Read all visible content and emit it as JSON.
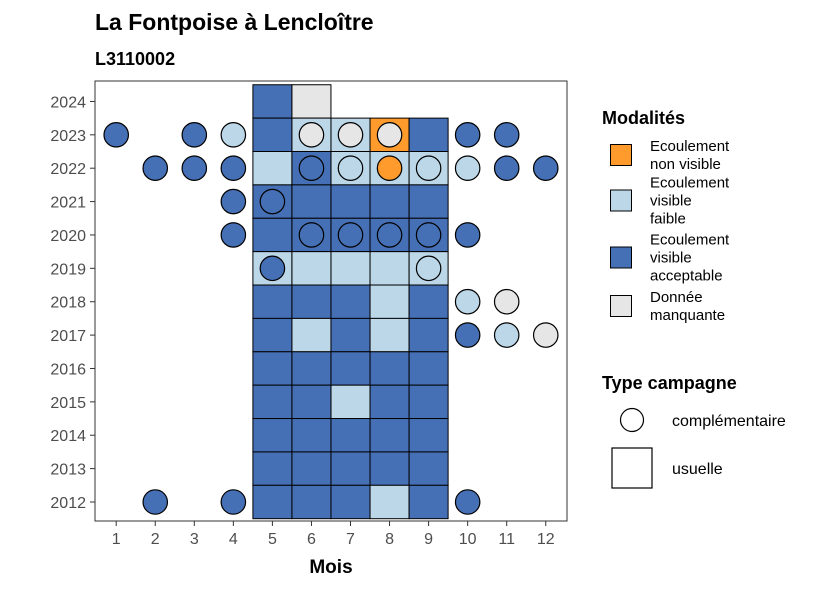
{
  "chart_data": {
    "type": "heatmap",
    "title": "La Fontpoise à Lencloître",
    "subtitle": "L3110002",
    "xlabel": "Mois",
    "x_ticks": [
      1,
      2,
      3,
      4,
      5,
      6,
      7,
      8,
      9,
      10,
      11,
      12
    ],
    "y_ticks": [
      2012,
      2013,
      2014,
      2015,
      2016,
      2017,
      2018,
      2019,
      2020,
      2021,
      2022,
      2023,
      2024
    ],
    "colors": {
      "ecoulement_non_visible": "#fe9b2c",
      "ecoulement_visible_faible": "#bcd7e8",
      "ecoulement_visible_acceptable": "#4670b5",
      "donnee_manquante": "#e6e6e6"
    },
    "legend_modalites": {
      "title": "Modalités",
      "items": [
        {
          "key": "ecoulement_non_visible",
          "lines": [
            "Ecoulement",
            "non visible"
          ]
        },
        {
          "key": "ecoulement_visible_faible",
          "lines": [
            "Ecoulement",
            "visible",
            "faible"
          ]
        },
        {
          "key": "ecoulement_visible_acceptable",
          "lines": [
            "Ecoulement",
            "visible",
            "acceptable"
          ]
        },
        {
          "key": "donnee_manquante",
          "lines": [
            "Donnée",
            "manquante"
          ]
        }
      ]
    },
    "legend_campagne": {
      "title": "Type campagne",
      "items": [
        {
          "shape": "circle",
          "label": "complémentaire"
        },
        {
          "shape": "square",
          "label": "usuelle"
        }
      ]
    },
    "usuelle": [
      {
        "year": 2024,
        "month": 5,
        "value": "ecoulement_visible_acceptable"
      },
      {
        "year": 2024,
        "month": 6,
        "value": "donnee_manquante"
      },
      {
        "year": 2023,
        "month": 5,
        "value": "ecoulement_visible_acceptable"
      },
      {
        "year": 2023,
        "month": 6,
        "value": "ecoulement_visible_faible"
      },
      {
        "year": 2023,
        "month": 7,
        "value": "ecoulement_visible_faible"
      },
      {
        "year": 2023,
        "month": 8,
        "value": "ecoulement_non_visible"
      },
      {
        "year": 2023,
        "month": 9,
        "value": "ecoulement_visible_acceptable"
      },
      {
        "year": 2022,
        "month": 5,
        "value": "ecoulement_visible_faible"
      },
      {
        "year": 2022,
        "month": 6,
        "value": "ecoulement_visible_acceptable"
      },
      {
        "year": 2022,
        "month": 7,
        "value": "ecoulement_visible_faible"
      },
      {
        "year": 2022,
        "month": 8,
        "value": "ecoulement_visible_faible"
      },
      {
        "year": 2022,
        "month": 9,
        "value": "ecoulement_visible_faible"
      },
      {
        "year": 2021,
        "month": 5,
        "value": "ecoulement_visible_acceptable"
      },
      {
        "year": 2021,
        "month": 6,
        "value": "ecoulement_visible_acceptable"
      },
      {
        "year": 2021,
        "month": 7,
        "value": "ecoulement_visible_acceptable"
      },
      {
        "year": 2021,
        "month": 8,
        "value": "ecoulement_visible_acceptable"
      },
      {
        "year": 2021,
        "month": 9,
        "value": "ecoulement_visible_acceptable"
      },
      {
        "year": 2020,
        "month": 5,
        "value": "ecoulement_visible_acceptable"
      },
      {
        "year": 2020,
        "month": 6,
        "value": "ecoulement_visible_acceptable"
      },
      {
        "year": 2020,
        "month": 7,
        "value": "ecoulement_visible_acceptable"
      },
      {
        "year": 2020,
        "month": 8,
        "value": "ecoulement_visible_acceptable"
      },
      {
        "year": 2020,
        "month": 9,
        "value": "ecoulement_visible_acceptable"
      },
      {
        "year": 2019,
        "month": 5,
        "value": "ecoulement_visible_faible"
      },
      {
        "year": 2019,
        "month": 6,
        "value": "ecoulement_visible_faible"
      },
      {
        "year": 2019,
        "month": 7,
        "value": "ecoulement_visible_faible"
      },
      {
        "year": 2019,
        "month": 8,
        "value": "ecoulement_visible_faible"
      },
      {
        "year": 2019,
        "month": 9,
        "value": "ecoulement_visible_faible"
      },
      {
        "year": 2018,
        "month": 5,
        "value": "ecoulement_visible_acceptable"
      },
      {
        "year": 2018,
        "month": 6,
        "value": "ecoulement_visible_acceptable"
      },
      {
        "year": 2018,
        "month": 7,
        "value": "ecoulement_visible_acceptable"
      },
      {
        "year": 2018,
        "month": 8,
        "value": "ecoulement_visible_faible"
      },
      {
        "year": 2018,
        "month": 9,
        "value": "ecoulement_visible_acceptable"
      },
      {
        "year": 2017,
        "month": 5,
        "value": "ecoulement_visible_acceptable"
      },
      {
        "year": 2017,
        "month": 6,
        "value": "ecoulement_visible_faible"
      },
      {
        "year": 2017,
        "month": 7,
        "value": "ecoulement_visible_acceptable"
      },
      {
        "year": 2017,
        "month": 8,
        "value": "ecoulement_visible_faible"
      },
      {
        "year": 2017,
        "month": 9,
        "value": "ecoulement_visible_acceptable"
      },
      {
        "year": 2016,
        "month": 5,
        "value": "ecoulement_visible_acceptable"
      },
      {
        "year": 2016,
        "month": 6,
        "value": "ecoulement_visible_acceptable"
      },
      {
        "year": 2016,
        "month": 7,
        "value": "ecoulement_visible_acceptable"
      },
      {
        "year": 2016,
        "month": 8,
        "value": "ecoulement_visible_acceptable"
      },
      {
        "year": 2016,
        "month": 9,
        "value": "ecoulement_visible_acceptable"
      },
      {
        "year": 2015,
        "month": 5,
        "value": "ecoulement_visible_acceptable"
      },
      {
        "year": 2015,
        "month": 6,
        "value": "ecoulement_visible_acceptable"
      },
      {
        "year": 2015,
        "month": 7,
        "value": "ecoulement_visible_faible"
      },
      {
        "year": 2015,
        "month": 8,
        "value": "ecoulement_visible_acceptable"
      },
      {
        "year": 2015,
        "month": 9,
        "value": "ecoulement_visible_acceptable"
      },
      {
        "year": 2014,
        "month": 5,
        "value": "ecoulement_visible_acceptable"
      },
      {
        "year": 2014,
        "month": 6,
        "value": "ecoulement_visible_acceptable"
      },
      {
        "year": 2014,
        "month": 7,
        "value": "ecoulement_visible_acceptable"
      },
      {
        "year": 2014,
        "month": 8,
        "value": "ecoulement_visible_acceptable"
      },
      {
        "year": 2014,
        "month": 9,
        "value": "ecoulement_visible_acceptable"
      },
      {
        "year": 2013,
        "month": 5,
        "value": "ecoulement_visible_acceptable"
      },
      {
        "year": 2013,
        "month": 6,
        "value": "ecoulement_visible_acceptable"
      },
      {
        "year": 2013,
        "month": 7,
        "value": "ecoulement_visible_acceptable"
      },
      {
        "year": 2013,
        "month": 8,
        "value": "ecoulement_visible_acceptable"
      },
      {
        "year": 2013,
        "month": 9,
        "value": "ecoulement_visible_acceptable"
      },
      {
        "year": 2012,
        "month": 5,
        "value": "ecoulement_visible_acceptable"
      },
      {
        "year": 2012,
        "month": 6,
        "value": "ecoulement_visible_acceptable"
      },
      {
        "year": 2012,
        "month": 7,
        "value": "ecoulement_visible_acceptable"
      },
      {
        "year": 2012,
        "month": 8,
        "value": "ecoulement_visible_faible"
      },
      {
        "year": 2012,
        "month": 9,
        "value": "ecoulement_visible_acceptable"
      }
    ],
    "complementaire": [
      {
        "year": 2023,
        "month": 1,
        "value": "ecoulement_visible_acceptable"
      },
      {
        "year": 2023,
        "month": 3,
        "value": "ecoulement_visible_acceptable"
      },
      {
        "year": 2023,
        "month": 4,
        "value": "ecoulement_visible_faible"
      },
      {
        "year": 2023,
        "month": 6,
        "value": "donnee_manquante"
      },
      {
        "year": 2023,
        "month": 7,
        "value": "donnee_manquante"
      },
      {
        "year": 2023,
        "month": 8,
        "value": "donnee_manquante"
      },
      {
        "year": 2023,
        "month": 10,
        "value": "ecoulement_visible_acceptable"
      },
      {
        "year": 2023,
        "month": 11,
        "value": "ecoulement_visible_acceptable"
      },
      {
        "year": 2022,
        "month": 2,
        "value": "ecoulement_visible_acceptable"
      },
      {
        "year": 2022,
        "month": 3,
        "value": "ecoulement_visible_acceptable"
      },
      {
        "year": 2022,
        "month": 4,
        "value": "ecoulement_visible_acceptable"
      },
      {
        "year": 2022,
        "month": 6,
        "value": "ecoulement_visible_acceptable"
      },
      {
        "year": 2022,
        "month": 7,
        "value": "ecoulement_visible_faible"
      },
      {
        "year": 2022,
        "month": 8,
        "value": "ecoulement_non_visible"
      },
      {
        "year": 2022,
        "month": 9,
        "value": "ecoulement_visible_faible"
      },
      {
        "year": 2022,
        "month": 10,
        "value": "ecoulement_visible_faible"
      },
      {
        "year": 2022,
        "month": 11,
        "value": "ecoulement_visible_acceptable"
      },
      {
        "year": 2022,
        "month": 12,
        "value": "ecoulement_visible_acceptable"
      },
      {
        "year": 2021,
        "month": 4,
        "value": "ecoulement_visible_acceptable"
      },
      {
        "year": 2021,
        "month": 5,
        "value": "ecoulement_visible_acceptable"
      },
      {
        "year": 2020,
        "month": 4,
        "value": "ecoulement_visible_acceptable"
      },
      {
        "year": 2020,
        "month": 6,
        "value": "ecoulement_visible_acceptable"
      },
      {
        "year": 2020,
        "month": 7,
        "value": "ecoulement_visible_acceptable"
      },
      {
        "year": 2020,
        "month": 8,
        "value": "ecoulement_visible_acceptable"
      },
      {
        "year": 2020,
        "month": 9,
        "value": "ecoulement_visible_acceptable"
      },
      {
        "year": 2020,
        "month": 10,
        "value": "ecoulement_visible_acceptable"
      },
      {
        "year": 2019,
        "month": 5,
        "value": "ecoulement_visible_acceptable"
      },
      {
        "year": 2019,
        "month": 9,
        "value": "ecoulement_visible_faible"
      },
      {
        "year": 2018,
        "month": 10,
        "value": "ecoulement_visible_faible"
      },
      {
        "year": 2018,
        "month": 11,
        "value": "donnee_manquante"
      },
      {
        "year": 2017,
        "month": 10,
        "value": "ecoulement_visible_acceptable"
      },
      {
        "year": 2017,
        "month": 11,
        "value": "ecoulement_visible_faible"
      },
      {
        "year": 2017,
        "month": 12,
        "value": "donnee_manquante"
      },
      {
        "year": 2012,
        "month": 2,
        "value": "ecoulement_visible_acceptable"
      },
      {
        "year": 2012,
        "month": 4,
        "value": "ecoulement_visible_acceptable"
      },
      {
        "year": 2012,
        "month": 10,
        "value": "ecoulement_visible_acceptable"
      }
    ]
  }
}
